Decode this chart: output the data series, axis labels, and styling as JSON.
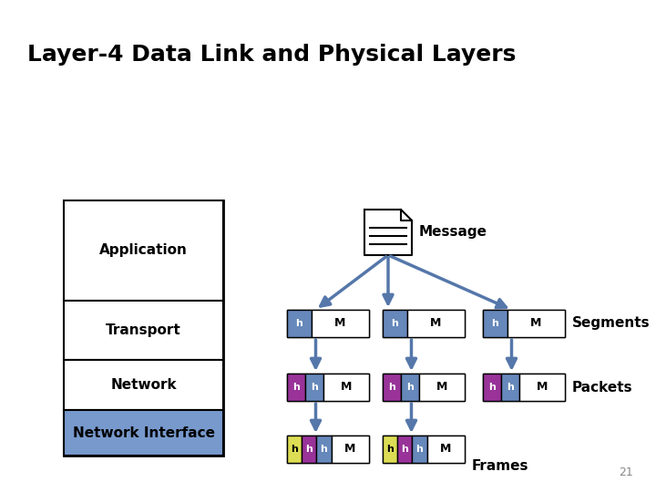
{
  "title": "Layer-4 Data Link and Physical Layers",
  "title_fontsize": 18,
  "bg_color": "#ffffff",
  "layers": [
    "Application",
    "Transport",
    "Network",
    "Network Interface"
  ],
  "layer_colors": [
    "#ffffff",
    "#ffffff",
    "#ffffff",
    "#7799cc"
  ],
  "arrow_color": "#5577aa",
  "seg_color": "#6688bb",
  "net_color": "#993399",
  "frame_color": "#dddd55",
  "label_segments": "Segments",
  "label_packets": "Packets",
  "label_frames": "Frames",
  "label_message": "Message",
  "page_num": "21"
}
